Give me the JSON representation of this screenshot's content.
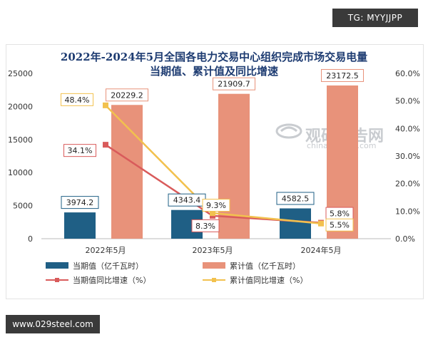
{
  "badge_top": "TG: MYYJJPP",
  "badge_bottom": "www.029steel.com",
  "watermark": {
    "text": "观研报告网",
    "sub": "chinabaogao.com"
  },
  "chart_data": {
    "type": "bar",
    "title_line1": "2022年-2024年5月全国各电力交易中心组织完成市场交易电量",
    "title_line2": "当期值、累计值及同比增速",
    "categories": [
      "2022年5月",
      "2023年5月",
      "2024年5月"
    ],
    "series": [
      {
        "name": "当期值（亿千瓦时）",
        "kind": "bar",
        "axis": "left",
        "color": "#1f5f85",
        "values": [
          3974.2,
          4343.4,
          4582.5
        ],
        "labels": [
          "3974.2",
          "4343.4",
          "4582.5"
        ]
      },
      {
        "name": "累计值（亿千瓦时）",
        "kind": "bar",
        "axis": "left",
        "color": "#e8927a",
        "values": [
          20229.2,
          21909.7,
          23172.5
        ],
        "labels": [
          "20229.2",
          "21909.7",
          "23172.5"
        ]
      },
      {
        "name": "当期值同比增速（%）",
        "kind": "line",
        "axis": "right",
        "color": "#d95b5b",
        "values": [
          34.1,
          8.3,
          5.8
        ],
        "labels": [
          "34.1%",
          "8.3%",
          "5.8%"
        ]
      },
      {
        "name": "累计值同比增速（%）",
        "kind": "line",
        "axis": "right",
        "color": "#f2c14e",
        "values": [
          48.4,
          9.3,
          5.5
        ],
        "labels": [
          "48.4%",
          "9.3%",
          "5.5%"
        ]
      }
    ],
    "y_left": {
      "min": 0,
      "max": 25000,
      "ticks": [
        "0",
        "5000",
        "10000",
        "15000",
        "20000",
        "25000"
      ]
    },
    "y_right": {
      "min": 0,
      "max": 60,
      "ticks": [
        "0.0%",
        "10.0%",
        "20.0%",
        "30.0%",
        "40.0%",
        "50.0%",
        "60.0%"
      ]
    },
    "grid": false,
    "legend": "bottom"
  }
}
